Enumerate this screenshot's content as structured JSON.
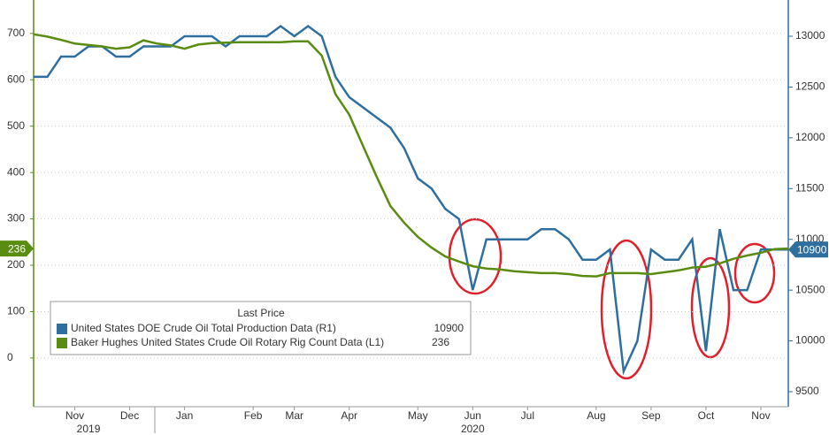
{
  "chart_data": {
    "type": "line",
    "categories": [
      null,
      null,
      null,
      "Nov",
      null,
      null,
      null,
      "Dec",
      null,
      null,
      null,
      "Jan",
      null,
      null,
      null,
      null,
      "Feb",
      null,
      null,
      "Mar",
      null,
      null,
      null,
      "Apr",
      null,
      null,
      null,
      null,
      "May",
      null,
      null,
      null,
      "Jun",
      null,
      null,
      null,
      "Jul",
      null,
      null,
      null,
      null,
      "Aug",
      null,
      null,
      null,
      "Sep",
      null,
      null,
      null,
      "Oct",
      null,
      null,
      null,
      "Nov",
      null,
      null
    ],
    "year_categories": [
      null,
      null,
      null,
      null,
      "2019",
      null,
      null,
      null,
      null,
      null,
      null,
      null,
      null,
      null,
      null,
      null,
      null,
      null,
      null,
      null,
      null,
      null,
      null,
      null,
      null,
      null,
      null,
      null,
      null,
      null,
      null,
      null,
      "2020",
      null,
      null,
      null,
      null,
      null,
      null,
      null,
      null,
      null,
      null,
      null,
      null,
      null,
      null,
      null,
      null,
      null,
      null,
      null,
      null,
      null,
      null,
      null
    ],
    "series": [
      {
        "name": "United States DOE Crude Oil Total Production Data  (R1)",
        "color": "#2f6f9f",
        "axis": "y2",
        "values": [
          12600,
          12600,
          12800,
          12800,
          12900,
          12900,
          12800,
          12800,
          12900,
          12900,
          12900,
          13000,
          13000,
          13000,
          12900,
          13000,
          13000,
          13000,
          13100,
          13000,
          13100,
          13000,
          12600,
          12400,
          12300,
          12200,
          12100,
          11900,
          11600,
          11500,
          11300,
          11200,
          10500,
          11000,
          11000,
          11000,
          11000,
          11100,
          11100,
          11000,
          10800,
          10800,
          10900,
          9700,
          10000,
          10900,
          10800,
          10800,
          11000,
          9900,
          11100,
          10500,
          10500,
          10900,
          10900,
          10900
        ]
      },
      {
        "name": "Baker Hughes United States Crude Oil Rotary Rig Count Data  (L1)",
        "color": "#5b8c12",
        "values": [
          698,
          693,
          686,
          678,
          675,
          672,
          667,
          670,
          685,
          678,
          674,
          667,
          676,
          679,
          680,
          681,
          681,
          681,
          681,
          683,
          683,
          652,
          569,
          525,
          458,
          391,
          328,
          292,
          261,
          238,
          219,
          208,
          198,
          193,
          191,
          187,
          185,
          183,
          183,
          181,
          177,
          176,
          183,
          183,
          183,
          181,
          185,
          189,
          195,
          197,
          204,
          214,
          221,
          227,
          235,
          236
        ]
      }
    ],
    "legend_title": "Last Price",
    "ylim": [
      -105,
      772
    ],
    "yticks": [
      0,
      100,
      200,
      300,
      400,
      500,
      600,
      700
    ],
    "y2lim": [
      9352,
      13357
    ],
    "y2ticks": [
      9500,
      10000,
      10500,
      11000,
      11500,
      12000,
      12500,
      13000
    ],
    "grid": true
  }
}
